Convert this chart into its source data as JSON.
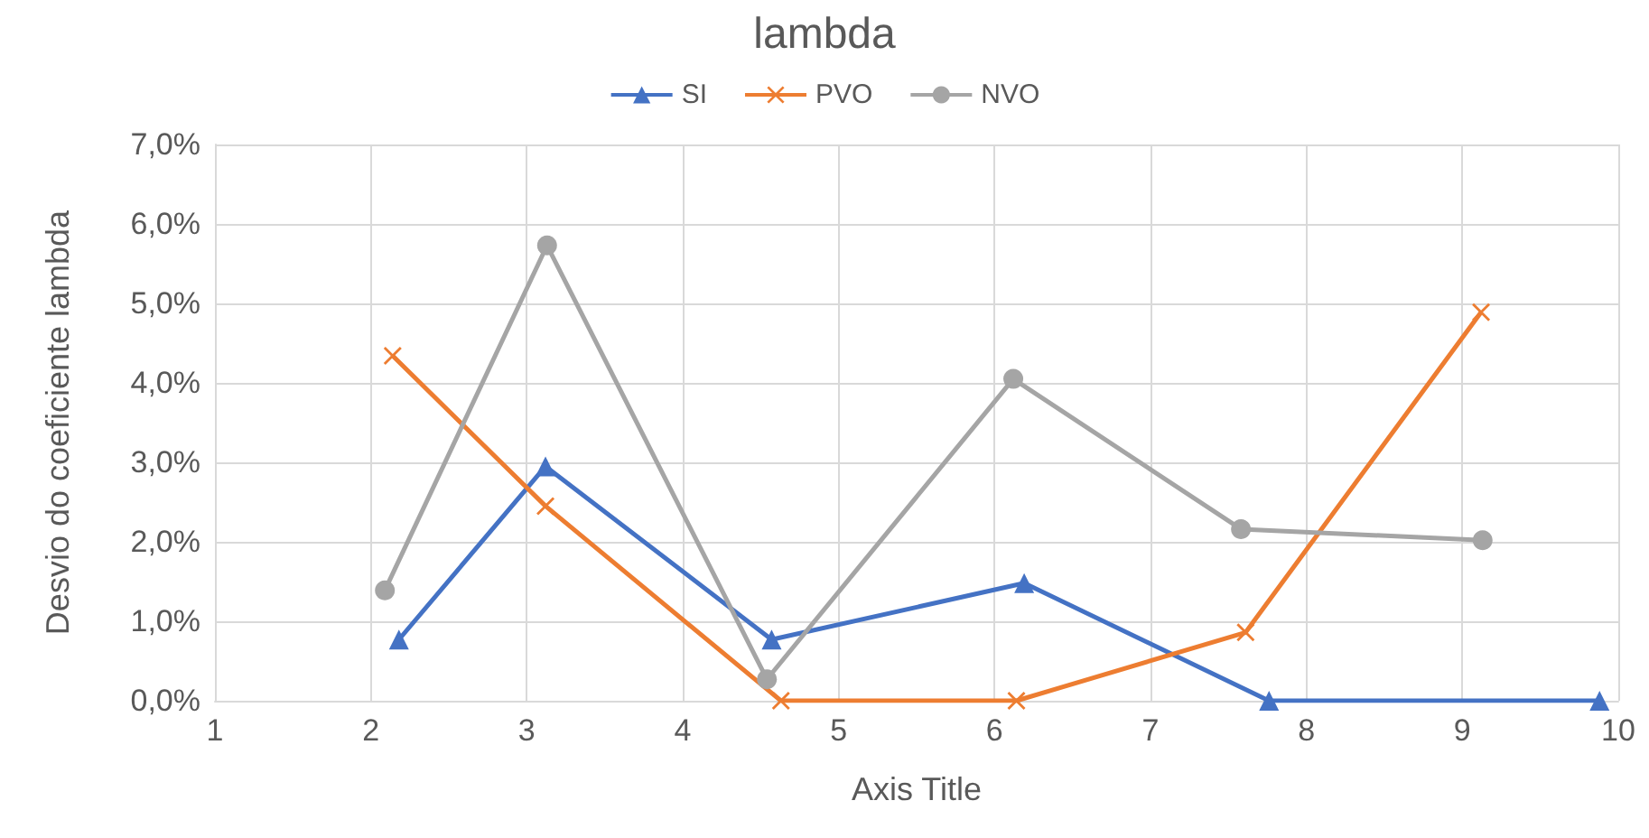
{
  "chart_data": {
    "type": "line",
    "title": "lambda",
    "xlabel": "Axis Title",
    "ylabel": "Desvio do coeficiente lambda",
    "xlim": [
      1,
      10
    ],
    "xticks": [
      1,
      2,
      3,
      4,
      5,
      6,
      7,
      8,
      9,
      10
    ],
    "ylim": [
      0,
      7
    ],
    "yticks": [
      {
        "value": 0,
        "label": "0,0%"
      },
      {
        "value": 1,
        "label": "1,0%"
      },
      {
        "value": 2,
        "label": "2,0%"
      },
      {
        "value": 3,
        "label": "3,0%"
      },
      {
        "value": 4,
        "label": "4,0%"
      },
      {
        "value": 5,
        "label": "5,0%"
      },
      {
        "value": 6,
        "label": "6,0%"
      },
      {
        "value": 7,
        "label": "7,0%"
      }
    ],
    "grid": true,
    "legend": "top",
    "series": [
      {
        "name": "SI",
        "color": "#4472c4",
        "marker": "triangle",
        "x": [
          2.18,
          3.12,
          4.57,
          6.19,
          7.76,
          9.88
        ],
        "values": [
          0.77,
          2.95,
          0.77,
          1.48,
          0,
          0
        ]
      },
      {
        "name": "PVO",
        "color": "#ed7d31",
        "marker": "cross",
        "x": [
          2.14,
          3.12,
          4.63,
          6.14,
          7.61,
          9.12
        ],
        "values": [
          4.34,
          2.45,
          0,
          0,
          0.86,
          4.89
        ]
      },
      {
        "name": "NVO",
        "color": "#a5a5a5",
        "marker": "circle",
        "x": [
          2.09,
          3.13,
          4.54,
          6.12,
          7.58,
          9.13
        ],
        "values": [
          1.39,
          5.73,
          0.27,
          4.05,
          2.16,
          2.02
        ]
      }
    ]
  }
}
